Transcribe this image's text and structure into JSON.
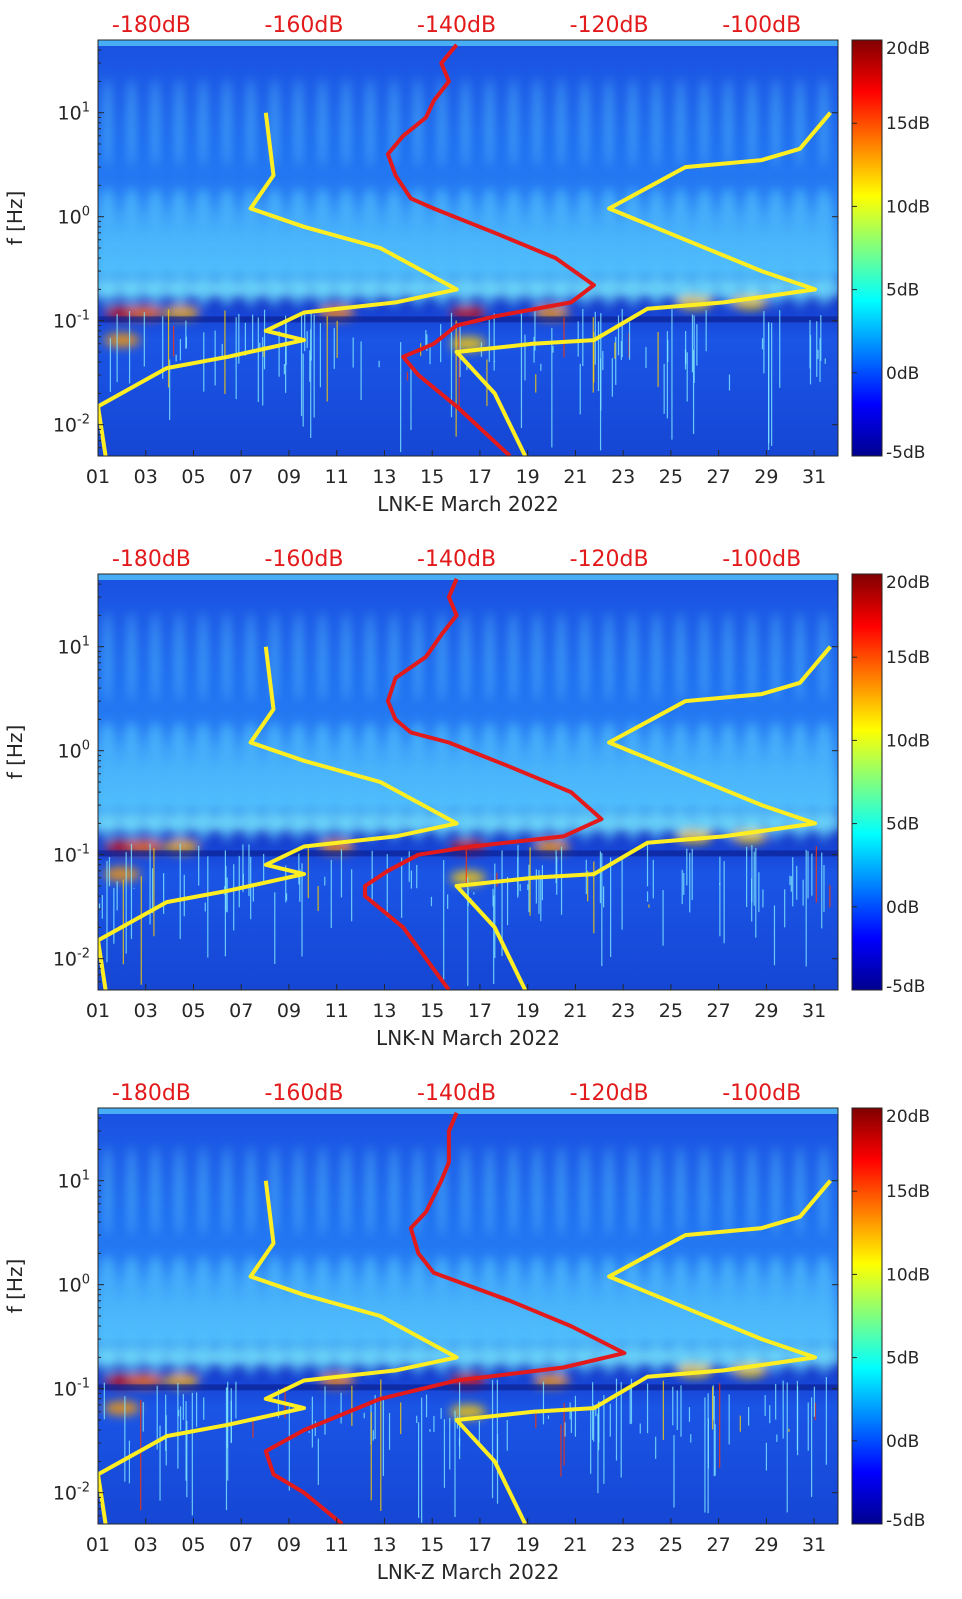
{
  "colors": {
    "red_curve": "#e31a1c",
    "yellow_curve": "#ffee22",
    "db_labels": "#e31a1c",
    "colormap": "jet"
  },
  "chart_data": [
    {
      "type": "heatmap",
      "title": "",
      "xlabel": "LNK-E March 2022",
      "ylabel": "f [Hz]",
      "x_ticks": [
        "01",
        "03",
        "05",
        "07",
        "09",
        "11",
        "13",
        "15",
        "17",
        "19",
        "21",
        "23",
        "25",
        "27",
        "29",
        "31"
      ],
      "xlim": [
        1,
        32
      ],
      "y_ticks": [
        "10^{-2}",
        "10^{-1}",
        "10^{0}",
        "10^{1}"
      ],
      "ylim": [
        0.005,
        50
      ],
      "yscale": "log",
      "top_axis_labels": [
        "-180dB",
        "-160dB",
        "-140dB",
        "-120dB",
        "-100dB"
      ],
      "top_axis_range_dB": [
        -187,
        -90
      ],
      "colorbar": {
        "ticks": [
          "-5dB",
          "0dB",
          "5dB",
          "10dB",
          "15dB",
          "20dB"
        ],
        "range": [
          -5,
          20
        ],
        "colormap": "jet"
      },
      "series": [
        {
          "color": "red",
          "x_unit": "dB",
          "points": [
            [
              -140,
              45
            ],
            [
              -142,
              30
            ],
            [
              -141,
              20
            ],
            [
              -143,
              13
            ],
            [
              -144,
              9
            ],
            [
              -147,
              6
            ],
            [
              -149,
              4
            ],
            [
              -148,
              2.5
            ],
            [
              -146,
              1.5
            ],
            [
              -143,
              1.2
            ],
            [
              -135,
              0.7
            ],
            [
              -127,
              0.4
            ],
            [
              -122,
              0.22
            ],
            [
              -125,
              0.15
            ],
            [
              -135,
              0.11
            ],
            [
              -140,
              0.09
            ],
            [
              -143,
              0.06
            ],
            [
              -147,
              0.045
            ],
            [
              -145,
              0.03
            ],
            [
              -140,
              0.015
            ],
            [
              -133,
              0.005
            ]
          ]
        },
        {
          "color": "yellow",
          "x_unit": "dB",
          "points": [
            [
              -165,
              10
            ],
            [
              -164,
              2.5
            ],
            [
              -167,
              1.2
            ],
            [
              -160,
              0.8
            ],
            [
              -150,
              0.5
            ],
            [
              -140,
              0.2
            ],
            [
              -148,
              0.15
            ],
            [
              -160,
              0.12
            ],
            [
              -165,
              0.08
            ],
            [
              -160,
              0.065
            ],
            [
              -170,
              0.045
            ],
            [
              -178,
              0.035
            ],
            [
              -187,
              0.015
            ],
            [
              -186,
              0.005
            ]
          ]
        },
        {
          "color": "yellow",
          "x_unit": "dB",
          "points": [
            [
              -91,
              10
            ],
            [
              -95,
              4.5
            ],
            [
              -100,
              3.5
            ],
            [
              -110,
              3
            ],
            [
              -120,
              1.2
            ],
            [
              -110,
              0.6
            ],
            [
              -100,
              0.3
            ],
            [
              -93,
              0.2
            ],
            [
              -105,
              0.15
            ],
            [
              -115,
              0.13
            ],
            [
              -122,
              0.065
            ],
            [
              -130,
              0.06
            ],
            [
              -140,
              0.05
            ],
            [
              -135,
              0.02
            ],
            [
              -131,
              0.005
            ]
          ]
        }
      ]
    },
    {
      "type": "heatmap",
      "title": "",
      "xlabel": "LNK-N March 2022",
      "ylabel": "f [Hz]",
      "x_ticks": [
        "01",
        "03",
        "05",
        "07",
        "09",
        "11",
        "13",
        "15",
        "17",
        "19",
        "21",
        "23",
        "25",
        "27",
        "29",
        "31"
      ],
      "xlim": [
        1,
        32
      ],
      "y_ticks": [
        "10^{-2}",
        "10^{-1}",
        "10^{0}",
        "10^{1}"
      ],
      "ylim": [
        0.005,
        50
      ],
      "yscale": "log",
      "top_axis_labels": [
        "-180dB",
        "-160dB",
        "-140dB",
        "-120dB",
        "-100dB"
      ],
      "top_axis_range_dB": [
        -187,
        -90
      ],
      "colorbar": {
        "ticks": [
          "-5dB",
          "0dB",
          "5dB",
          "10dB",
          "15dB",
          "20dB"
        ],
        "range": [
          -5,
          20
        ],
        "colormap": "jet"
      },
      "series": [
        {
          "color": "red",
          "x_unit": "dB",
          "points": [
            [
              -140,
              45
            ],
            [
              -141,
              30
            ],
            [
              -140,
              20
            ],
            [
              -142,
              13
            ],
            [
              -144,
              8
            ],
            [
              -148,
              5
            ],
            [
              -149,
              3
            ],
            [
              -148,
              2
            ],
            [
              -146,
              1.5
            ],
            [
              -141,
              1.2
            ],
            [
              -133,
              0.7
            ],
            [
              -125,
              0.4
            ],
            [
              -121,
              0.22
            ],
            [
              -126,
              0.15
            ],
            [
              -138,
              0.12
            ],
            [
              -145,
              0.1
            ],
            [
              -149,
              0.07
            ],
            [
              -152,
              0.05
            ],
            [
              -152,
              0.04
            ],
            [
              -147,
              0.02
            ],
            [
              -141,
              0.005
            ]
          ]
        },
        {
          "color": "yellow",
          "x_unit": "dB",
          "points": [
            [
              -165,
              10
            ],
            [
              -164,
              2.5
            ],
            [
              -167,
              1.2
            ],
            [
              -160,
              0.8
            ],
            [
              -150,
              0.5
            ],
            [
              -140,
              0.2
            ],
            [
              -148,
              0.15
            ],
            [
              -160,
              0.12
            ],
            [
              -165,
              0.08
            ],
            [
              -160,
              0.065
            ],
            [
              -170,
              0.045
            ],
            [
              -178,
              0.035
            ],
            [
              -187,
              0.015
            ],
            [
              -186,
              0.005
            ]
          ]
        },
        {
          "color": "yellow",
          "x_unit": "dB",
          "points": [
            [
              -91,
              10
            ],
            [
              -95,
              4.5
            ],
            [
              -100,
              3.5
            ],
            [
              -110,
              3
            ],
            [
              -120,
              1.2
            ],
            [
              -110,
              0.6
            ],
            [
              -100,
              0.3
            ],
            [
              -93,
              0.2
            ],
            [
              -105,
              0.15
            ],
            [
              -115,
              0.13
            ],
            [
              -122,
              0.065
            ],
            [
              -130,
              0.06
            ],
            [
              -140,
              0.05
            ],
            [
              -135,
              0.02
            ],
            [
              -131,
              0.005
            ]
          ]
        }
      ]
    },
    {
      "type": "heatmap",
      "title": "",
      "xlabel": "LNK-Z March 2022",
      "ylabel": "f [Hz]",
      "x_ticks": [
        "01",
        "03",
        "05",
        "07",
        "09",
        "11",
        "13",
        "15",
        "17",
        "19",
        "21",
        "23",
        "25",
        "27",
        "29",
        "31"
      ],
      "xlim": [
        1,
        32
      ],
      "y_ticks": [
        "10^{-2}",
        "10^{-1}",
        "10^{0}",
        "10^{1}"
      ],
      "ylim": [
        0.005,
        50
      ],
      "yscale": "log",
      "top_axis_labels": [
        "-180dB",
        "-160dB",
        "-140dB",
        "-120dB",
        "-100dB"
      ],
      "top_axis_range_dB": [
        -187,
        -90
      ],
      "colorbar": {
        "ticks": [
          "-5dB",
          "0dB",
          "5dB",
          "10dB",
          "15dB",
          "20dB"
        ],
        "range": [
          -5,
          20
        ],
        "colormap": "jet"
      },
      "series": [
        {
          "color": "red",
          "x_unit": "dB",
          "points": [
            [
              -140,
              45
            ],
            [
              -141,
              30
            ],
            [
              -141,
              15
            ],
            [
              -142,
              10
            ],
            [
              -144,
              5
            ],
            [
              -146,
              3.5
            ],
            [
              -145,
              2
            ],
            [
              -143,
              1.3
            ],
            [
              -133,
              0.7
            ],
            [
              -125,
              0.4
            ],
            [
              -118,
              0.22
            ],
            [
              -126,
              0.16
            ],
            [
              -140,
              0.12
            ],
            [
              -150,
              0.08
            ],
            [
              -160,
              0.04
            ],
            [
              -165,
              0.025
            ],
            [
              -164,
              0.015
            ],
            [
              -160,
              0.01
            ],
            [
              -155,
              0.005
            ]
          ]
        },
        {
          "color": "yellow",
          "x_unit": "dB",
          "points": [
            [
              -165,
              10
            ],
            [
              -164,
              2.5
            ],
            [
              -167,
              1.2
            ],
            [
              -160,
              0.8
            ],
            [
              -150,
              0.5
            ],
            [
              -140,
              0.2
            ],
            [
              -148,
              0.15
            ],
            [
              -160,
              0.12
            ],
            [
              -165,
              0.08
            ],
            [
              -160,
              0.065
            ],
            [
              -170,
              0.045
            ],
            [
              -178,
              0.035
            ],
            [
              -187,
              0.015
            ],
            [
              -186,
              0.005
            ]
          ]
        },
        {
          "color": "yellow",
          "x_unit": "dB",
          "points": [
            [
              -91,
              10
            ],
            [
              -95,
              4.5
            ],
            [
              -100,
              3.5
            ],
            [
              -110,
              3
            ],
            [
              -120,
              1.2
            ],
            [
              -110,
              0.6
            ],
            [
              -100,
              0.3
            ],
            [
              -93,
              0.2
            ],
            [
              -105,
              0.15
            ],
            [
              -115,
              0.13
            ],
            [
              -122,
              0.065
            ],
            [
              -130,
              0.06
            ],
            [
              -140,
              0.05
            ],
            [
              -135,
              0.02
            ],
            [
              -131,
              0.005
            ]
          ]
        }
      ]
    }
  ]
}
